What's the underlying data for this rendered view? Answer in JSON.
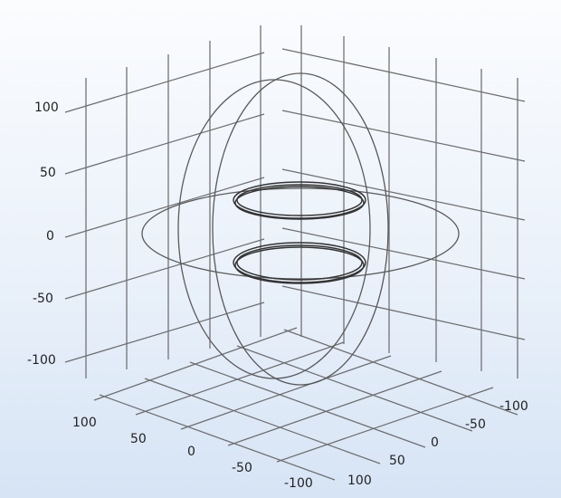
{
  "z_axis": {
    "ticks": [
      {
        "label": "100",
        "value": 100
      },
      {
        "label": "50",
        "value": 50
      },
      {
        "label": "0",
        "value": 0
      },
      {
        "label": "-50",
        "value": -50
      },
      {
        "label": "-100",
        "value": -100
      }
    ]
  },
  "x_axis": {
    "ticks": [
      {
        "label": "100",
        "value": 100
      },
      {
        "label": "50",
        "value": 50
      },
      {
        "label": "0",
        "value": 0
      },
      {
        "label": "-50",
        "value": -50
      },
      {
        "label": "-100",
        "value": -100
      }
    ]
  },
  "y_axis": {
    "ticks": [
      {
        "label": "-100",
        "value": -100
      },
      {
        "label": "-50",
        "value": -50
      },
      {
        "label": "0",
        "value": 0
      },
      {
        "label": "50",
        "value": 50
      },
      {
        "label": "100",
        "value": 100
      }
    ]
  },
  "colors": {
    "background_top": "#fbfcfe",
    "background_bottom": "#d6e4f5",
    "grid": "#6e6e6e",
    "geometry": "#5a5a5a"
  }
}
